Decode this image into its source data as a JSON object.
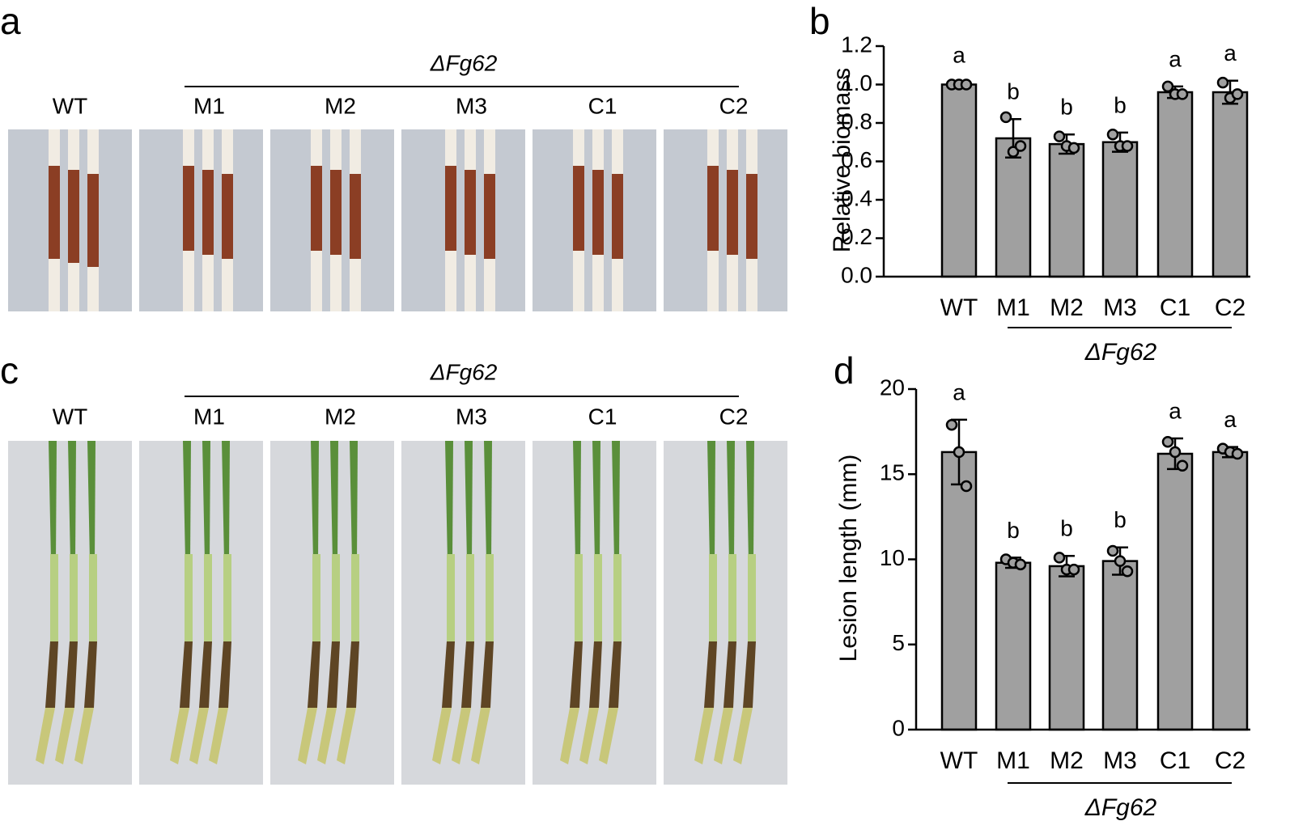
{
  "panels": [
    {
      "label": "a",
      "group": "ΔFg62",
      "samples": [
        "WT",
        "M1",
        "M2",
        "M3",
        "C1",
        "C2"
      ]
    },
    {
      "label": "c",
      "group": "ΔFg62",
      "samples": [
        "WT",
        "M1",
        "M2",
        "M3",
        "C1",
        "C2"
      ]
    }
  ],
  "chart_data": [
    {
      "type": "bar",
      "panel_label": "b",
      "ylabel": "Relative biomass",
      "categories": [
        "WT",
        "M1",
        "M2",
        "M3",
        "C1",
        "C2"
      ],
      "values": [
        1.0,
        0.72,
        0.69,
        0.7,
        0.96,
        0.96
      ],
      "errors": [
        0.01,
        0.1,
        0.05,
        0.05,
        0.03,
        0.06
      ],
      "points": [
        [
          1.0,
          1.0,
          1.0
        ],
        [
          0.83,
          0.65,
          0.68
        ],
        [
          0.73,
          0.68,
          0.67
        ],
        [
          0.74,
          0.68,
          0.68
        ],
        [
          0.99,
          0.95,
          0.95
        ],
        [
          1.01,
          0.93,
          0.95
        ]
      ],
      "letters": [
        "a",
        "b",
        "b",
        "b",
        "a",
        "a"
      ],
      "group_label": "ΔFg62",
      "color": "#a0a0a0",
      "ylim": [
        0,
        1.2
      ],
      "yticks": [
        {
          "value": 0,
          "label": "0.0"
        },
        {
          "value": 0.2,
          "label": "0.2"
        },
        {
          "value": 0.4,
          "label": "0.4"
        },
        {
          "value": 0.6,
          "label": "0.6"
        },
        {
          "value": 0.8,
          "label": "0.8"
        },
        {
          "value": 1.0,
          "label": "1.0"
        },
        {
          "value": 1.2,
          "label": "1.2"
        }
      ]
    },
    {
      "type": "bar",
      "panel_label": "d",
      "ylabel": "Lesion  length (mm)",
      "categories": [
        "WT",
        "M1",
        "M2",
        "M3",
        "C1",
        "C2"
      ],
      "values": [
        16.3,
        9.8,
        9.6,
        9.9,
        16.2,
        16.3
      ],
      "errors": [
        1.9,
        0.3,
        0.6,
        0.8,
        0.9,
        0.3
      ],
      "points": [
        [
          17.9,
          16.3,
          14.3
        ],
        [
          10.0,
          9.8,
          9.7
        ],
        [
          10.1,
          9.4,
          9.4
        ],
        [
          10.5,
          9.9,
          9.3
        ],
        [
          16.9,
          16.3,
          15.5
        ],
        [
          16.5,
          16.3,
          16.2
        ]
      ],
      "letters": [
        "a",
        "b",
        "b",
        "b",
        "a",
        "a"
      ],
      "group_label": "ΔFg62",
      "color": "#a0a0a0",
      "ylim": [
        0,
        20
      ],
      "yticks": [
        0,
        5,
        10,
        15,
        20
      ]
    }
  ]
}
